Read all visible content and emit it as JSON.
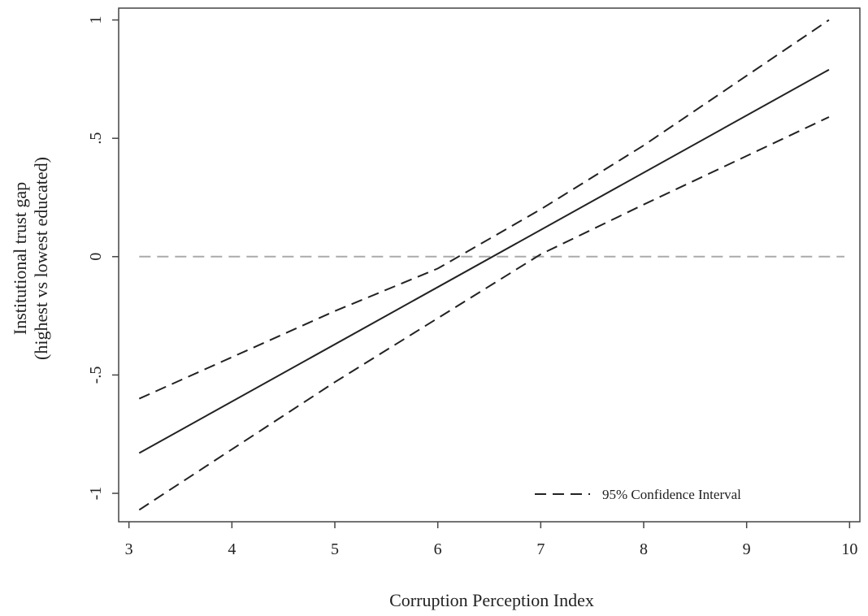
{
  "chart_data": {
    "type": "line",
    "title": "",
    "xlabel": "Corruption Perception Index",
    "ylabel": [
      "Institutional trust gap",
      "(highest vs lowest educated)"
    ],
    "xlim": [
      2.9,
      10.1
    ],
    "ylim": [
      -1.12,
      1.05
    ],
    "xticks": [
      3,
      4,
      5,
      6,
      7,
      8,
      9,
      10
    ],
    "xtick_labels": [
      "3",
      "4",
      "5",
      "6",
      "7",
      "8",
      "9",
      "10"
    ],
    "yticks": [
      -1,
      -0.5,
      0,
      0.5,
      1
    ],
    "ytick_labels": [
      "-1",
      "-.5",
      "0",
      ".5",
      "1"
    ],
    "grid": false,
    "reference_line": {
      "y": 0,
      "style": "dashed",
      "color": "#aaaaaa"
    },
    "series": [
      {
        "role": "estimate",
        "style": "solid",
        "color": "#222222",
        "x": [
          3.1,
          9.8
        ],
        "y": [
          -0.83,
          0.79
        ]
      },
      {
        "role": "ci-upper",
        "style": "dashed",
        "color": "#222222",
        "x": [
          3.1,
          5.0,
          6.0,
          7.0,
          8.0,
          9.8
        ],
        "y": [
          -0.6,
          -0.23,
          -0.05,
          0.2,
          0.47,
          1.0
        ]
      },
      {
        "role": "ci-lower",
        "style": "dashed",
        "color": "#222222",
        "x": [
          3.1,
          5.0,
          6.0,
          7.0,
          8.0,
          9.8
        ],
        "y": [
          -1.07,
          -0.53,
          -0.26,
          0.01,
          0.22,
          0.59
        ]
      }
    ],
    "legend": {
      "position": "bottom-right",
      "entries": [
        {
          "label": "95% Confidence Interval",
          "style": "dashed"
        }
      ]
    }
  }
}
